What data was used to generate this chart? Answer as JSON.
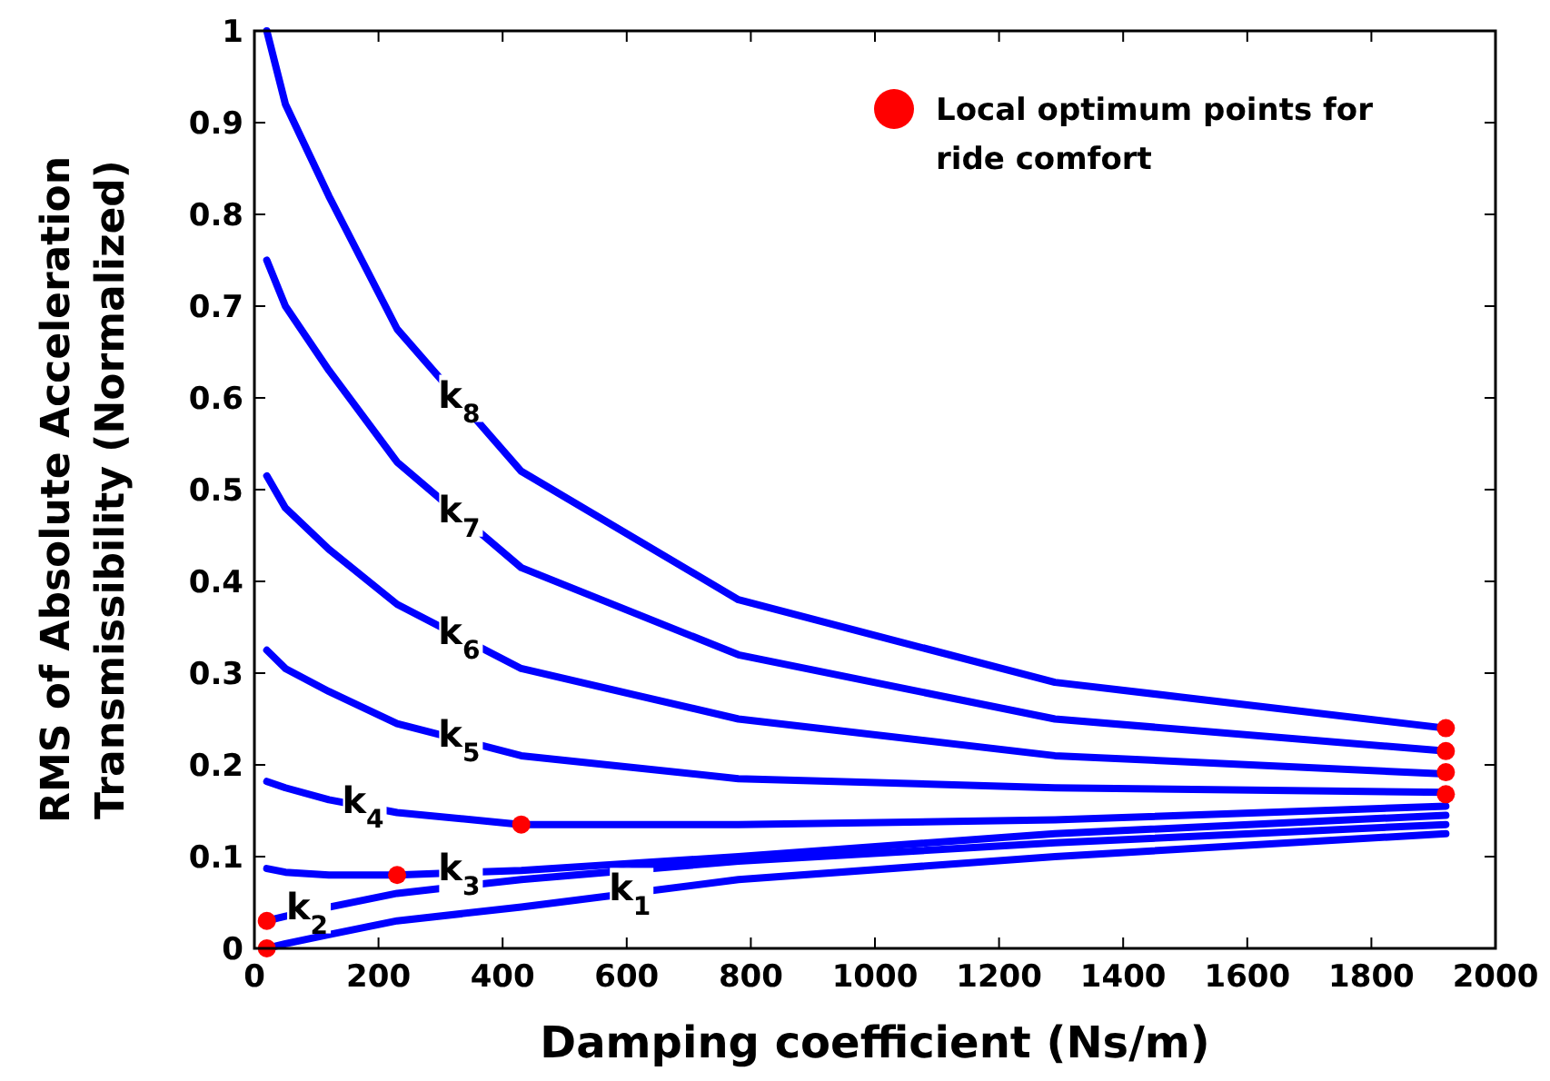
{
  "chart_data": {
    "type": "line",
    "xlabel": "Damping coefficient (Ns/m)",
    "ylabel": "RMS of Absolute Acceleration\nTransmissibility (Normalized)",
    "x": [
      20,
      50,
      120,
      230,
      430,
      780,
      1290,
      1920
    ],
    "series": [
      {
        "name": "k$_{1}$",
        "color": "#0000ff",
        "values": [
          0,
          0.005,
          0.015,
          0.03,
          0.045,
          0.075,
          0.1,
          0.125
        ]
      },
      {
        "name": "k$_{2}$",
        "color": "#0000ff",
        "values": [
          0.03,
          0.035,
          0.045,
          0.06,
          0.075,
          0.095,
          0.115,
          0.135
        ]
      },
      {
        "name": "k$_{3}$",
        "color": "#0000ff",
        "values": [
          0.087,
          0.083,
          0.08,
          0.08,
          0.085,
          0.1,
          0.125,
          0.145
        ]
      },
      {
        "name": "k$_{4}$",
        "color": "#0000ff",
        "values": [
          0.182,
          0.175,
          0.162,
          0.148,
          0.135,
          0.135,
          0.14,
          0.155
        ]
      },
      {
        "name": "k$_{5}$",
        "color": "#0000ff",
        "values": [
          0.325,
          0.305,
          0.28,
          0.245,
          0.21,
          0.185,
          0.175,
          0.17
        ]
      },
      {
        "name": "k$_{6}$",
        "color": "#0000ff",
        "values": [
          0.515,
          0.48,
          0.435,
          0.375,
          0.305,
          0.25,
          0.21,
          0.19
        ]
      },
      {
        "name": "k$_{7}$",
        "color": "#0000ff",
        "values": [
          0.75,
          0.7,
          0.63,
          0.53,
          0.415,
          0.32,
          0.25,
          0.215
        ]
      },
      {
        "name": "k$_{8}$",
        "color": "#0000ff",
        "values": [
          1,
          0.92,
          0.82,
          0.675,
          0.52,
          0.38,
          0.29,
          0.24
        ]
      },
      {
        "type": "scatter",
        "name": "Local optimum points for ride comfort",
        "color": "#ff0000",
        "x": [
          20,
          20,
          230,
          430,
          1920,
          1920,
          1920,
          1920
        ],
        "values": [
          0,
          0.03,
          0.08,
          0.135,
          0.168,
          0.192,
          0.215,
          0.24
        ]
      }
    ],
    "xlim": [
      0,
      2000
    ],
    "xticks": [
      0,
      200,
      400,
      600,
      800,
      1000,
      1200,
      1400,
      1600,
      1800,
      2000
    ],
    "ylim": [
      0,
      1
    ],
    "yticks": [
      0,
      0.1,
      0.2,
      0.3,
      0.4,
      0.5,
      0.6,
      0.7,
      0.8,
      0.9,
      1
    ],
    "legend": "top right",
    "line_style": "solid",
    "grid": false
  }
}
